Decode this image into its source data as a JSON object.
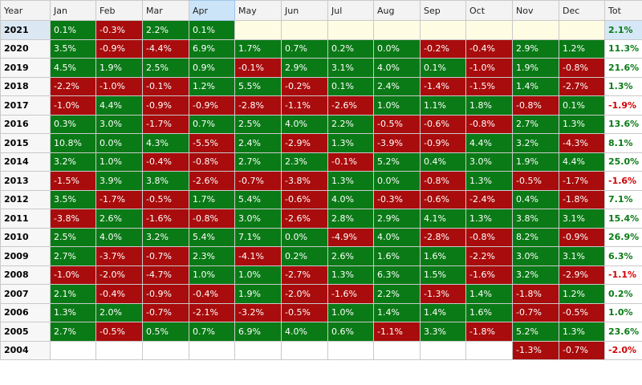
{
  "colors": {
    "positive": "#0a7a16",
    "negative": "#a90c0c",
    "tot_negative": "#d40000",
    "selection": "#cce4f7"
  },
  "headers": [
    "Year",
    "Jan",
    "Feb",
    "Mar",
    "Apr",
    "May",
    "Jun",
    "Jul",
    "Aug",
    "Sep",
    "Oct",
    "Nov",
    "Dec",
    "Tot"
  ],
  "selected_column": "Apr",
  "selected_row": "2021",
  "rows": [
    {
      "year": "2021",
      "months": [
        "0.1%",
        "-0.3%",
        "2.2%",
        "0.1%",
        "",
        "",
        "",
        "",
        "",
        "",
        "",
        ""
      ],
      "tot": "2.1%"
    },
    {
      "year": "2020",
      "months": [
        "3.5%",
        "-0.9%",
        "-4.4%",
        "6.9%",
        "1.7%",
        "0.7%",
        "0.2%",
        "0.0%",
        "-0.2%",
        "-0.4%",
        "2.9%",
        "1.2%"
      ],
      "tot": "11.3%"
    },
    {
      "year": "2019",
      "months": [
        "4.5%",
        "1.9%",
        "2.5%",
        "0.9%",
        "-0.1%",
        "2.9%",
        "3.1%",
        "4.0%",
        "0.1%",
        "-1.0%",
        "1.9%",
        "-0.8%"
      ],
      "tot": "21.6%"
    },
    {
      "year": "2018",
      "months": [
        "-2.2%",
        "-1.0%",
        "-0.1%",
        "1.2%",
        "5.5%",
        "-0.2%",
        "0.1%",
        "2.4%",
        "-1.4%",
        "-1.5%",
        "1.4%",
        "-2.7%"
      ],
      "tot": "1.3%"
    },
    {
      "year": "2017",
      "months": [
        "-1.0%",
        "4.4%",
        "-0.9%",
        "-0.9%",
        "-2.8%",
        "-1.1%",
        "-2.6%",
        "1.0%",
        "1.1%",
        "1.8%",
        "-0.8%",
        "0.1%"
      ],
      "tot": "-1.9%"
    },
    {
      "year": "2016",
      "months": [
        "0.3%",
        "3.0%",
        "-1.7%",
        "0.7%",
        "2.5%",
        "4.0%",
        "2.2%",
        "-0.5%",
        "-0.6%",
        "-0.8%",
        "2.7%",
        "1.3%"
      ],
      "tot": "13.6%"
    },
    {
      "year": "2015",
      "months": [
        "10.8%",
        "0.0%",
        "4.3%",
        "-5.5%",
        "2.4%",
        "-2.9%",
        "1.3%",
        "-3.9%",
        "-0.9%",
        "4.4%",
        "3.2%",
        "-4.3%"
      ],
      "tot": "8.1%"
    },
    {
      "year": "2014",
      "months": [
        "3.2%",
        "1.0%",
        "-0.4%",
        "-0.8%",
        "2.7%",
        "2.3%",
        "-0.1%",
        "5.2%",
        "0.4%",
        "3.0%",
        "1.9%",
        "4.4%"
      ],
      "tot": "25.0%"
    },
    {
      "year": "2013",
      "months": [
        "-1.5%",
        "3.9%",
        "3.8%",
        "-2.6%",
        "-0.7%",
        "-3.8%",
        "1.3%",
        "0.0%",
        "-0.8%",
        "1.3%",
        "-0.5%",
        "-1.7%"
      ],
      "tot": "-1.6%"
    },
    {
      "year": "2012",
      "months": [
        "3.5%",
        "-1.7%",
        "-0.5%",
        "1.7%",
        "5.4%",
        "-0.6%",
        "4.0%",
        "-0.3%",
        "-0.6%",
        "-2.4%",
        "0.4%",
        "-1.8%"
      ],
      "tot": "7.1%"
    },
    {
      "year": "2011",
      "months": [
        "-3.8%",
        "2.6%",
        "-1.6%",
        "-0.8%",
        "3.0%",
        "-2.6%",
        "2.8%",
        "2.9%",
        "4.1%",
        "1.3%",
        "3.8%",
        "3.1%"
      ],
      "tot": "15.4%"
    },
    {
      "year": "2010",
      "months": [
        "2.5%",
        "4.0%",
        "3.2%",
        "5.4%",
        "7.1%",
        "0.0%",
        "-4.9%",
        "4.0%",
        "-2.8%",
        "-0.8%",
        "8.2%",
        "-0.9%"
      ],
      "tot": "26.9%"
    },
    {
      "year": "2009",
      "months": [
        "2.7%",
        "-3.7%",
        "-0.7%",
        "2.3%",
        "-4.1%",
        "0.2%",
        "2.6%",
        "1.6%",
        "1.6%",
        "-2.2%",
        "3.0%",
        "3.1%"
      ],
      "tot": "6.3%"
    },
    {
      "year": "2008",
      "months": [
        "-1.0%",
        "-2.0%",
        "-4.7%",
        "1.0%",
        "1.0%",
        "-2.7%",
        "1.3%",
        "6.3%",
        "1.5%",
        "-1.6%",
        "3.2%",
        "-2.9%"
      ],
      "tot": "-1.1%"
    },
    {
      "year": "2007",
      "months": [
        "2.1%",
        "-0.4%",
        "-0.9%",
        "-0.4%",
        "1.9%",
        "-2.0%",
        "-1.6%",
        "2.2%",
        "-1.3%",
        "1.4%",
        "-1.8%",
        "1.2%"
      ],
      "tot": "0.2%"
    },
    {
      "year": "2006",
      "months": [
        "1.3%",
        "2.0%",
        "-0.7%",
        "-2.1%",
        "-3.2%",
        "-0.5%",
        "1.0%",
        "1.4%",
        "1.4%",
        "1.6%",
        "-0.7%",
        "-0.5%"
      ],
      "tot": "1.0%"
    },
    {
      "year": "2005",
      "months": [
        "2.7%",
        "-0.5%",
        "0.5%",
        "0.7%",
        "6.9%",
        "4.0%",
        "0.6%",
        "-1.1%",
        "3.3%",
        "-1.8%",
        "5.2%",
        "1.3%"
      ],
      "tot": "23.6%"
    },
    {
      "year": "2004",
      "months": [
        "",
        "",
        "",
        "",
        "",
        "",
        "",
        "",
        "",
        "",
        "-1.3%",
        "-0.7%"
      ],
      "tot": "-2.0%"
    }
  ]
}
